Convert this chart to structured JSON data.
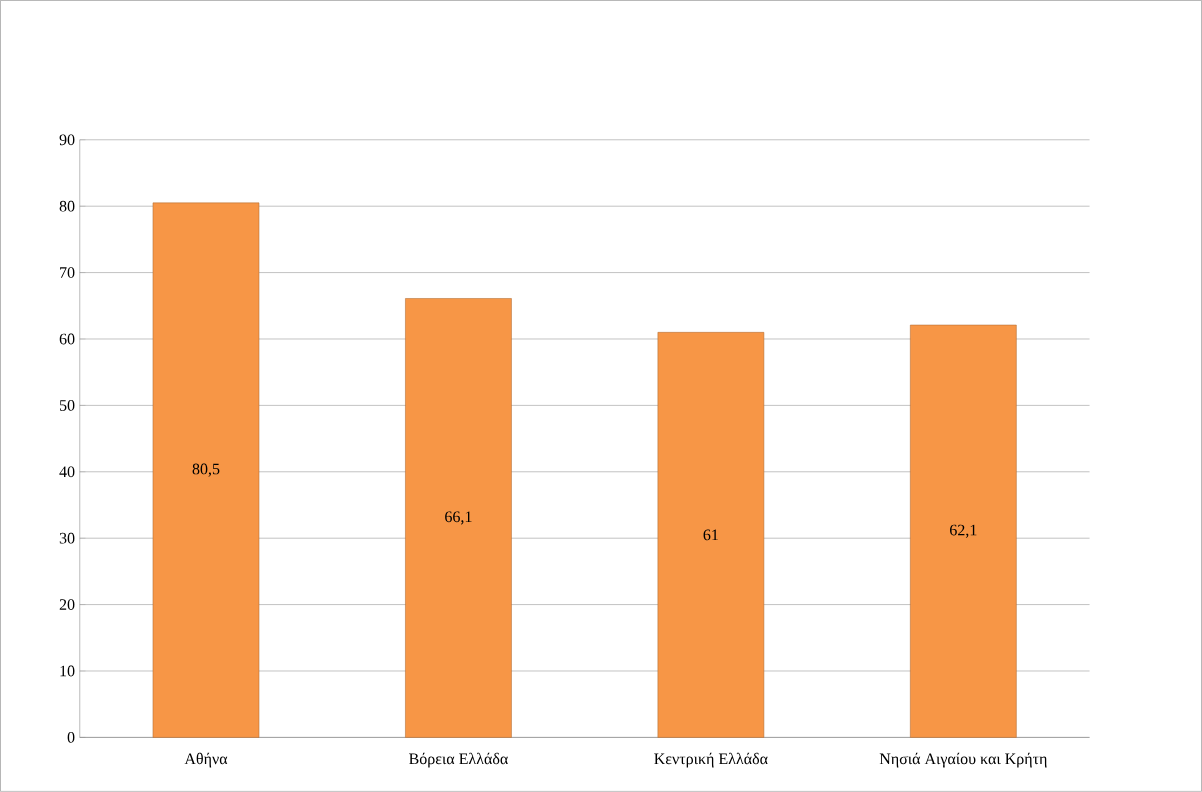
{
  "chart_data": {
    "type": "bar",
    "categories": [
      "Αθήνα",
      "Βόρεια Ελλάδα",
      "Κεντρική Ελλάδα",
      "Νησιά Αιγαίου και Κρήτη"
    ],
    "values": [
      80.5,
      66.1,
      61,
      62.1
    ],
    "value_labels": [
      "80,5",
      "66,1",
      "61",
      "62,1"
    ],
    "color": "#f79646",
    "ylim": [
      0,
      90
    ],
    "yticks": [
      0,
      10,
      20,
      30,
      40,
      50,
      60,
      70,
      80,
      90
    ],
    "grid": "y"
  }
}
